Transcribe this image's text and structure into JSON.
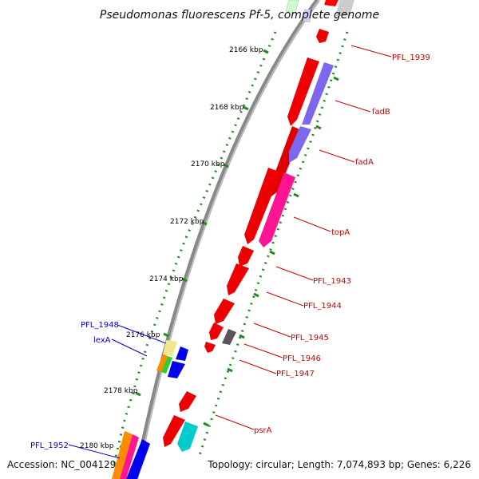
{
  "title": "Pseudomonas fluorescens Pf-5, complete genome",
  "footer": {
    "accession": "Accession: NC_004129",
    "summary": "Topology: circular; Length: 7,074,893 bp; Genes: 6,226"
  },
  "ticks": [
    "2166 kbp",
    "2168 kbp",
    "2170 kbp",
    "2172 kbp",
    "2174 kbp",
    "2176 kbp",
    "2178 kbp",
    "2180 kbp"
  ],
  "gene_labels_forward": [
    "PFL_1939",
    "fadB",
    "fadA",
    "topA",
    "PFL_1943",
    "PFL_1944",
    "PFL_1945",
    "PFL_1946",
    "PFL_1947",
    "psrA"
  ],
  "gene_labels_reverse": [
    "PFL_1948",
    "lexA",
    "PFL_1952"
  ],
  "colors": {
    "backbone": "#888888",
    "forward_gene": "#ee0000",
    "reverse_gene": "#0000ee",
    "label_forward": "#cc0000",
    "label_reverse": "#0000cc",
    "tick_dots": "#228b22",
    "fadAB": "#7b68ee",
    "topA": "#ff1493",
    "cyan": "#00cccc",
    "grey": "#555555",
    "khaki": "#f0e68c",
    "orange": "#ff8c00",
    "green": "#32cd32"
  }
}
